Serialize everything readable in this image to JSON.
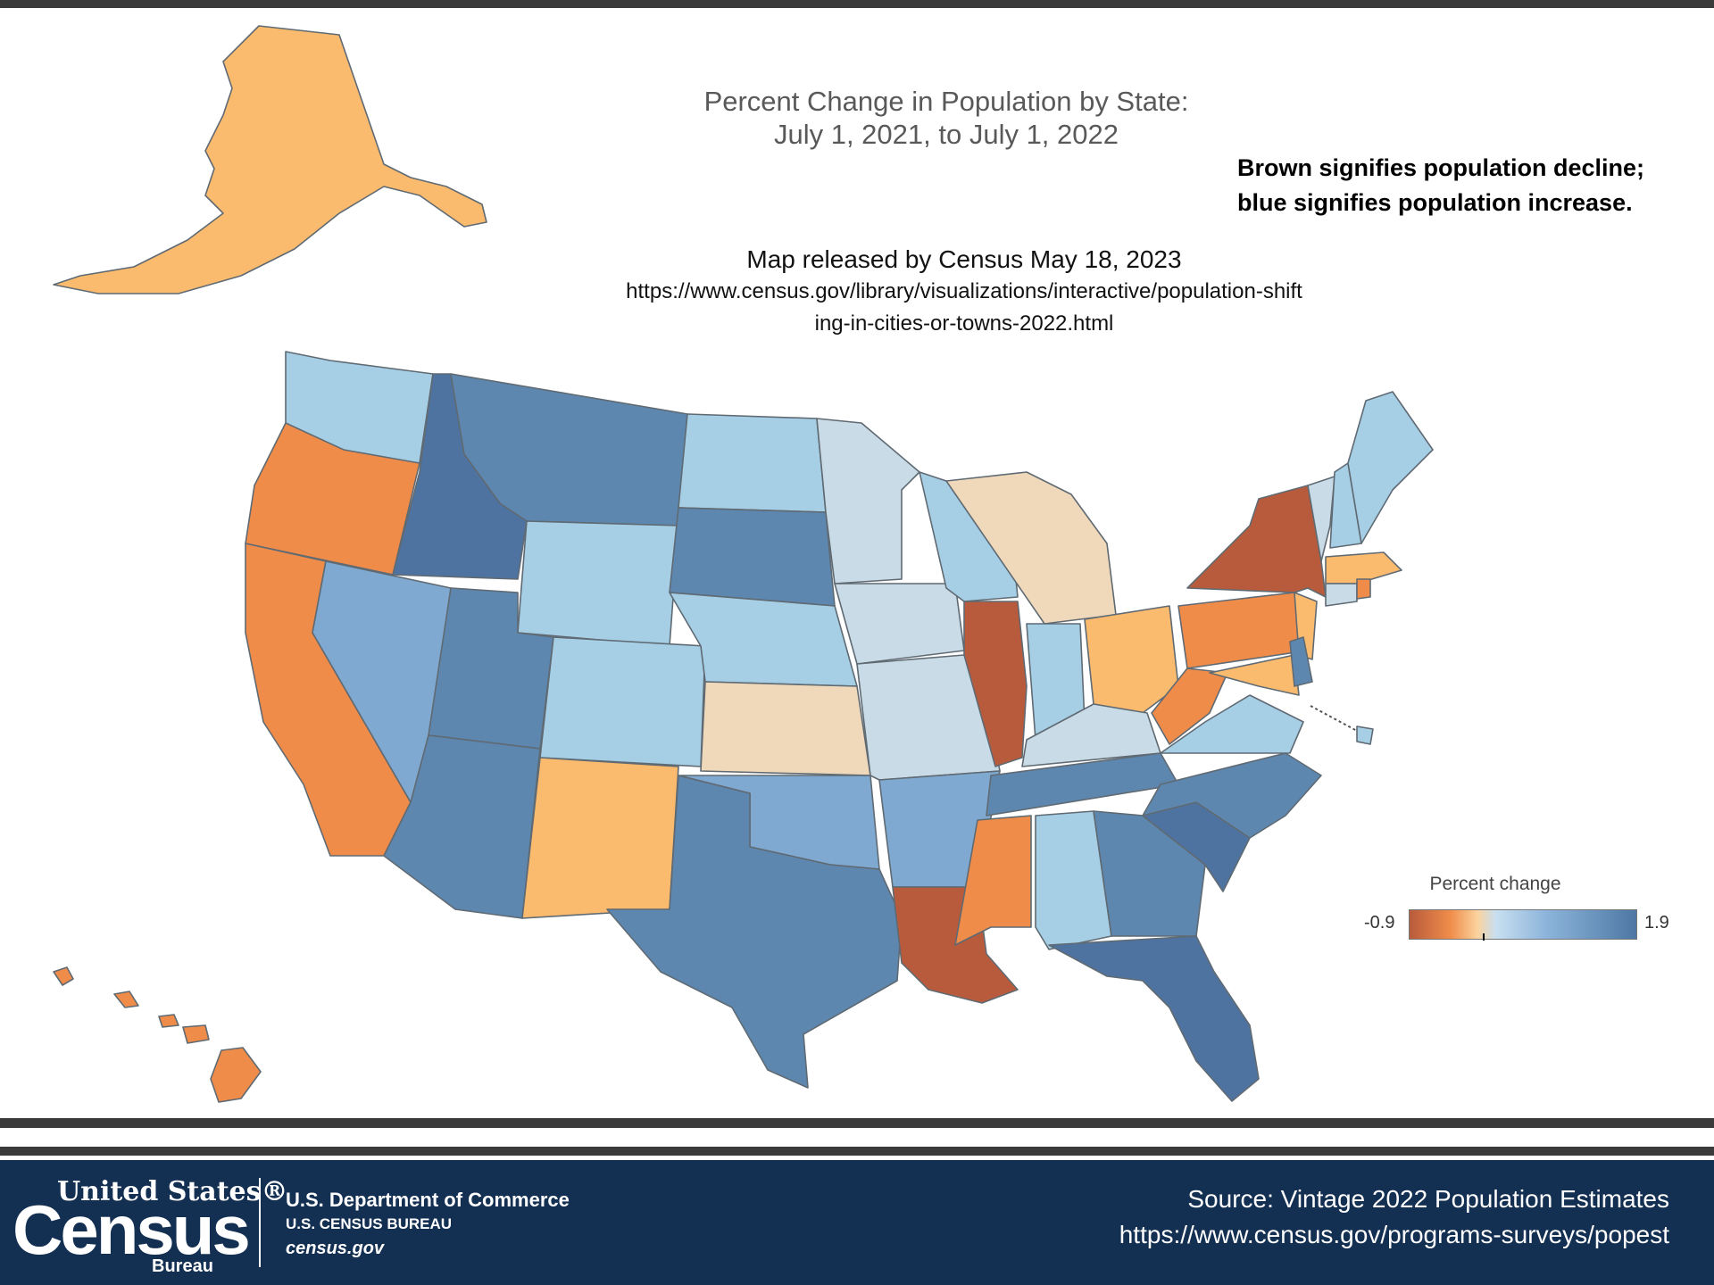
{
  "map": {
    "title_line1": "Percent Change in Population by State:",
    "title_line2": "July 1, 2021, to July 1, 2022",
    "note_line1": "Brown signifies population decline;",
    "note_line2": "blue signifies population increase.",
    "release_text": "Map released by Census May 18, 2023",
    "release_url": "https://www.census.gov/library/visualizations/interactive/population-shifting-in-cities-or-towns-2022.html"
  },
  "legend": {
    "title": "Percent change",
    "min_label": "-0.9",
    "max_label": "1.9",
    "min_value": -0.9,
    "max_value": 1.9,
    "zero_marker_value": 0
  },
  "colors": {
    "strong_decline": "#b85b3c",
    "decline": "#f08c4a",
    "slight_decline": "#fbbb6f",
    "near_zero_decline": "#f0d9bb",
    "near_zero_growth": "#c9dbe6",
    "growth": "#a6cfe6",
    "moderate_growth": "#7fa9d1",
    "strong_growth": "#5e87b0",
    "strongest_growth": "#4f73a0"
  },
  "footer": {
    "logo_top": "United States®",
    "logo_main": "Census",
    "logo_bureau": "Bureau",
    "department": "U.S. Department of Commerce",
    "bureau_name": "U.S. CENSUS BUREAU",
    "website": "census.gov",
    "source": "Source: Vintage 2022 Population Estimates",
    "source_url": "https://www.census.gov/programs-surveys/popest"
  }
}
